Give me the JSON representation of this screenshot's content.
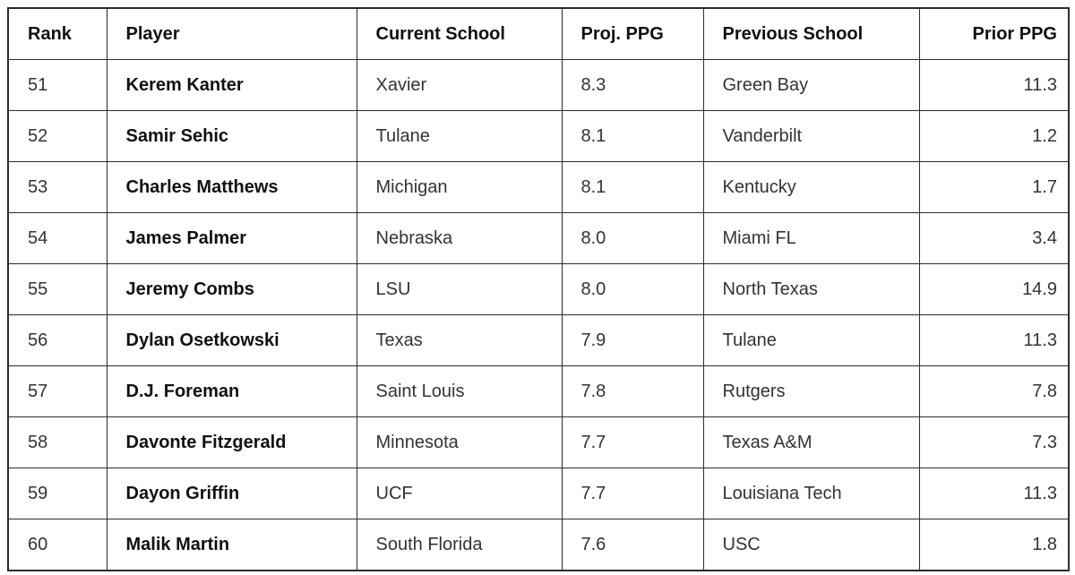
{
  "table": {
    "headers": [
      "Rank",
      "Player",
      "Current School",
      "Proj. PPG",
      "Previous School",
      "Prior PPG"
    ],
    "rows": [
      [
        "51",
        "Kerem Kanter",
        "Xavier",
        "8.3",
        "Green Bay",
        "11.3"
      ],
      [
        "52",
        "Samir Sehic",
        "Tulane",
        "8.1",
        "Vanderbilt",
        "1.2"
      ],
      [
        "53",
        "Charles Matthews",
        "Michigan",
        "8.1",
        "Kentucky",
        "1.7"
      ],
      [
        "54",
        "James Palmer",
        "Nebraska",
        "8.0",
        "Miami FL",
        "3.4"
      ],
      [
        "55",
        "Jeremy Combs",
        "LSU",
        "8.0",
        "North Texas",
        "14.9"
      ],
      [
        "56",
        "Dylan Osetkowski",
        "Texas",
        "7.9",
        "Tulane",
        "11.3"
      ],
      [
        "57",
        "D.J. Foreman",
        "Saint Louis",
        "7.8",
        "Rutgers",
        "7.8"
      ],
      [
        "58",
        "Davonte Fitzgerald",
        "Minnesota",
        "7.7",
        "Texas A&M",
        "7.3"
      ],
      [
        "59",
        "Dayon Griffin",
        "UCF",
        "7.7",
        "Louisiana Tech",
        "11.3"
      ],
      [
        "60",
        "Malik Martin",
        "South Florida",
        "7.6",
        "USC",
        "1.8"
      ]
    ]
  }
}
